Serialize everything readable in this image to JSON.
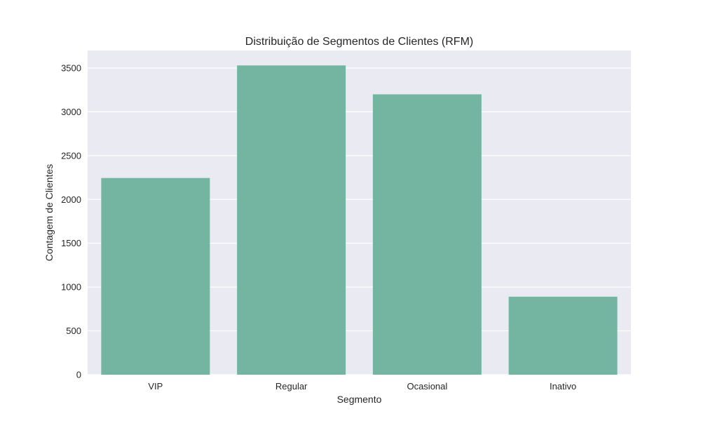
{
  "chart_data": {
    "type": "bar",
    "title": "Distribuição de Segmentos de Clientes (RFM)",
    "xlabel": "Segmento",
    "ylabel": "Contagem de Clientes",
    "categories": [
      "VIP",
      "Regular",
      "Ocasional",
      "Inativo"
    ],
    "values": [
      2245,
      3530,
      3200,
      890
    ],
    "ylim": [
      0,
      3700
    ],
    "yticks": [
      0,
      500,
      1000,
      1500,
      2000,
      2500,
      3000,
      3500
    ],
    "grid": true,
    "colors": {
      "bar": "#74b5a1",
      "plot_background": "#eaeaf2",
      "grid": "#ffffff"
    }
  }
}
